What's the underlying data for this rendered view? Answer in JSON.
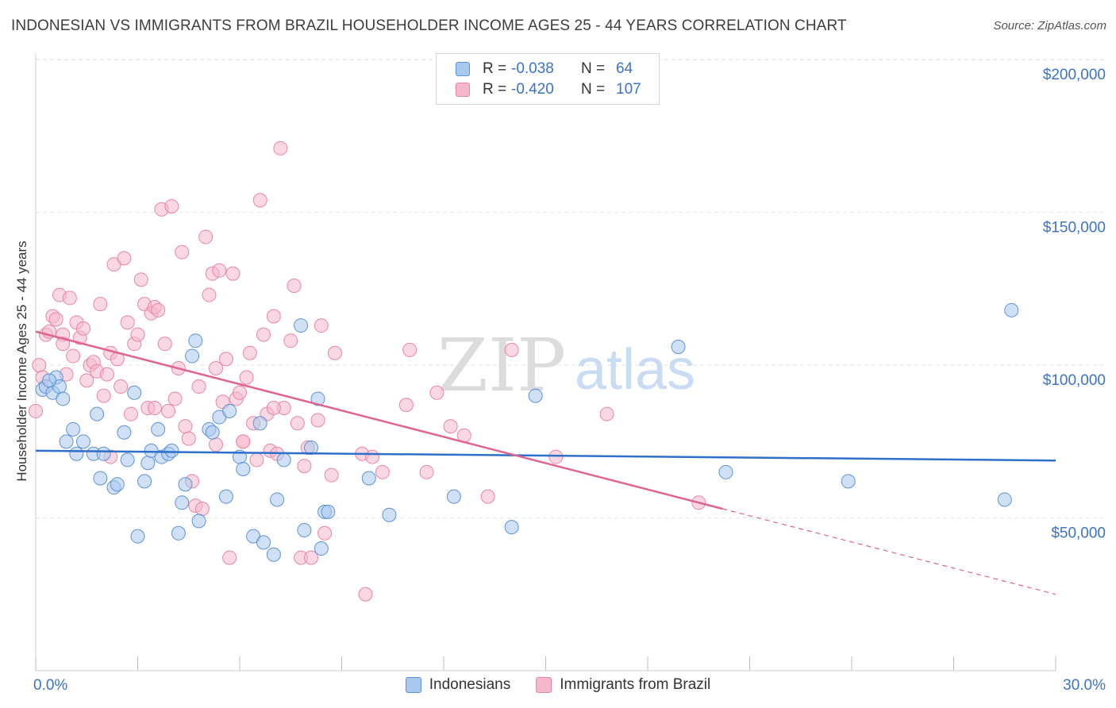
{
  "title": "INDONESIAN VS IMMIGRANTS FROM BRAZIL HOUSEHOLDER INCOME AGES 25 - 44 YEARS CORRELATION CHART",
  "source": "Source: ZipAtlas.com",
  "watermark": {
    "zip": "ZIP",
    "atlas": "atlas"
  },
  "legend": {
    "rows": [
      {
        "r_label": "R =",
        "r_value": "-0.038",
        "n_label": "N =",
        "n_value": "64"
      },
      {
        "r_label": "R =",
        "r_value": "-0.420",
        "n_label": "N =",
        "n_value": "107"
      }
    ]
  },
  "bottom_legend": {
    "series_a": "Indonesians",
    "series_b": "Immigrants from Brazil"
  },
  "colors": {
    "blue_fill": "#a9c8ee",
    "blue_stroke": "#5b93d8",
    "blue_line": "#2f6fcc",
    "pink_fill": "#f5b8cc",
    "pink_stroke": "#e885a7",
    "pink_line": "#e0648f",
    "tick_label": "#3b73c8",
    "grid": "#e4e4e4"
  },
  "chart_data": {
    "type": "scatter",
    "title": "INDONESIAN VS IMMIGRANTS FROM BRAZIL HOUSEHOLDER INCOME AGES 25 - 44 YEARS CORRELATION CHART",
    "xlabel": "",
    "ylabel": "Householder Income Ages 25 - 44 years",
    "xlim": [
      0,
      30
    ],
    "ylim": [
      0,
      205000
    ],
    "x_tick_labels": [
      "0.0%",
      "30.0%"
    ],
    "y_ticks": [
      50000,
      100000,
      150000,
      200000
    ],
    "y_tick_labels": [
      "$50,000",
      "$100,000",
      "$150,000",
      "$200,000"
    ],
    "series": [
      {
        "name": "Indonesians",
        "R": -0.038,
        "N": 64,
        "trend": {
          "x": [
            0,
            30
          ],
          "y": [
            72000,
            68800
          ]
        },
        "points": [
          [
            0.2,
            92000
          ],
          [
            0.3,
            93000
          ],
          [
            0.5,
            91000
          ],
          [
            0.6,
            96000
          ],
          [
            0.7,
            93000
          ],
          [
            0.8,
            89000
          ],
          [
            0.9,
            75000
          ],
          [
            1.1,
            79000
          ],
          [
            1.2,
            71000
          ],
          [
            1.4,
            75000
          ],
          [
            1.7,
            71000
          ],
          [
            1.8,
            84000
          ],
          [
            1.9,
            63000
          ],
          [
            2.0,
            71000
          ],
          [
            2.3,
            60000
          ],
          [
            2.4,
            61000
          ],
          [
            2.6,
            78000
          ],
          [
            2.7,
            69000
          ],
          [
            2.9,
            91000
          ],
          [
            3.0,
            44000
          ],
          [
            3.2,
            62000
          ],
          [
            3.3,
            68000
          ],
          [
            3.4,
            72000
          ],
          [
            3.6,
            79000
          ],
          [
            3.7,
            70000
          ],
          [
            3.9,
            71000
          ],
          [
            4.0,
            72000
          ],
          [
            4.2,
            45000
          ],
          [
            4.3,
            55000
          ],
          [
            4.4,
            61000
          ],
          [
            4.6,
            103000
          ],
          [
            4.7,
            108000
          ],
          [
            4.8,
            49000
          ],
          [
            5.1,
            79000
          ],
          [
            5.2,
            78000
          ],
          [
            5.4,
            83000
          ],
          [
            5.6,
            57000
          ],
          [
            5.7,
            85000
          ],
          [
            6.0,
            70000
          ],
          [
            6.1,
            66000
          ],
          [
            6.4,
            44000
          ],
          [
            6.6,
            81000
          ],
          [
            6.7,
            42000
          ],
          [
            7.0,
            38000
          ],
          [
            7.1,
            56000
          ],
          [
            7.3,
            69000
          ],
          [
            7.8,
            113000
          ],
          [
            7.9,
            46000
          ],
          [
            8.1,
            73000
          ],
          [
            8.3,
            89000
          ],
          [
            8.4,
            40000
          ],
          [
            8.5,
            52000
          ],
          [
            8.6,
            52000
          ],
          [
            9.8,
            63000
          ],
          [
            10.4,
            51000
          ],
          [
            12.3,
            57000
          ],
          [
            14.0,
            47000
          ],
          [
            14.7,
            90000
          ],
          [
            18.9,
            106000
          ],
          [
            20.3,
            65000
          ],
          [
            23.9,
            62000
          ],
          [
            28.5,
            56000
          ],
          [
            28.7,
            118000
          ],
          [
            0.4,
            95000
          ]
        ]
      },
      {
        "name": "Immigrants from Brazil",
        "R": -0.42,
        "N": 107,
        "trend": {
          "x": [
            0,
            20.2
          ],
          "y": [
            111000,
            53000
          ]
        },
        "trend_dashed": {
          "x": [
            20.2,
            30
          ],
          "y": [
            53000,
            25000
          ]
        },
        "points": [
          [
            0.0,
            85000
          ],
          [
            0.1,
            100000
          ],
          [
            0.2,
            96000
          ],
          [
            0.3,
            110000
          ],
          [
            0.4,
            111000
          ],
          [
            0.5,
            116000
          ],
          [
            0.6,
            115000
          ],
          [
            0.7,
            123000
          ],
          [
            0.8,
            110000
          ],
          [
            0.8,
            107000
          ],
          [
            0.9,
            97000
          ],
          [
            1.0,
            122000
          ],
          [
            1.1,
            103000
          ],
          [
            1.2,
            114000
          ],
          [
            1.3,
            109000
          ],
          [
            1.4,
            112000
          ],
          [
            1.5,
            95000
          ],
          [
            1.6,
            100000
          ],
          [
            1.7,
            101000
          ],
          [
            1.8,
            98000
          ],
          [
            1.9,
            120000
          ],
          [
            2.0,
            90000
          ],
          [
            2.1,
            97000
          ],
          [
            2.2,
            104000
          ],
          [
            2.3,
            133000
          ],
          [
            2.4,
            102000
          ],
          [
            2.5,
            93000
          ],
          [
            2.6,
            135000
          ],
          [
            2.7,
            114000
          ],
          [
            2.8,
            84000
          ],
          [
            2.9,
            107000
          ],
          [
            3.0,
            110000
          ],
          [
            3.1,
            128000
          ],
          [
            3.2,
            120000
          ],
          [
            3.3,
            86000
          ],
          [
            3.4,
            117000
          ],
          [
            3.5,
            86000
          ],
          [
            3.5,
            119000
          ],
          [
            3.6,
            118000
          ],
          [
            3.7,
            151000
          ],
          [
            3.8,
            107000
          ],
          [
            3.9,
            85000
          ],
          [
            4.0,
            152000
          ],
          [
            4.1,
            89000
          ],
          [
            4.2,
            99000
          ],
          [
            4.3,
            137000
          ],
          [
            4.4,
            80000
          ],
          [
            4.5,
            76000
          ],
          [
            4.6,
            62000
          ],
          [
            4.7,
            54000
          ],
          [
            4.8,
            93000
          ],
          [
            4.9,
            53000
          ],
          [
            5.0,
            142000
          ],
          [
            5.1,
            123000
          ],
          [
            5.2,
            130000
          ],
          [
            5.3,
            99000
          ],
          [
            5.4,
            131000
          ],
          [
            5.5,
            88000
          ],
          [
            5.6,
            102000
          ],
          [
            5.7,
            37000
          ],
          [
            5.8,
            130000
          ],
          [
            5.9,
            89000
          ],
          [
            6.0,
            91000
          ],
          [
            6.1,
            75000
          ],
          [
            6.2,
            96000
          ],
          [
            6.3,
            104000
          ],
          [
            6.4,
            81000
          ],
          [
            6.5,
            69000
          ],
          [
            6.6,
            154000
          ],
          [
            6.7,
            110000
          ],
          [
            6.8,
            84000
          ],
          [
            6.9,
            72000
          ],
          [
            7.0,
            116000
          ],
          [
            7.1,
            71000
          ],
          [
            7.2,
            171000
          ],
          [
            7.3,
            86000
          ],
          [
            7.5,
            108000
          ],
          [
            7.6,
            126000
          ],
          [
            7.7,
            81000
          ],
          [
            7.8,
            37000
          ],
          [
            7.9,
            67000
          ],
          [
            8.0,
            73000
          ],
          [
            8.1,
            37000
          ],
          [
            8.3,
            82000
          ],
          [
            8.4,
            113000
          ],
          [
            8.5,
            45000
          ],
          [
            8.7,
            64000
          ],
          [
            8.8,
            104000
          ],
          [
            9.6,
            71000
          ],
          [
            9.7,
            25000
          ],
          [
            9.9,
            70000
          ],
          [
            10.2,
            65000
          ],
          [
            10.9,
            87000
          ],
          [
            11.0,
            105000
          ],
          [
            11.5,
            65000
          ],
          [
            11.8,
            91000
          ],
          [
            12.2,
            80000
          ],
          [
            12.6,
            77000
          ],
          [
            13.3,
            57000
          ],
          [
            14.0,
            105000
          ],
          [
            15.3,
            70000
          ],
          [
            16.8,
            84000
          ],
          [
            19.5,
            55000
          ],
          [
            2.2,
            70000
          ],
          [
            5.3,
            74000
          ],
          [
            6.1,
            75000
          ],
          [
            7.0,
            86000
          ]
        ]
      }
    ]
  }
}
